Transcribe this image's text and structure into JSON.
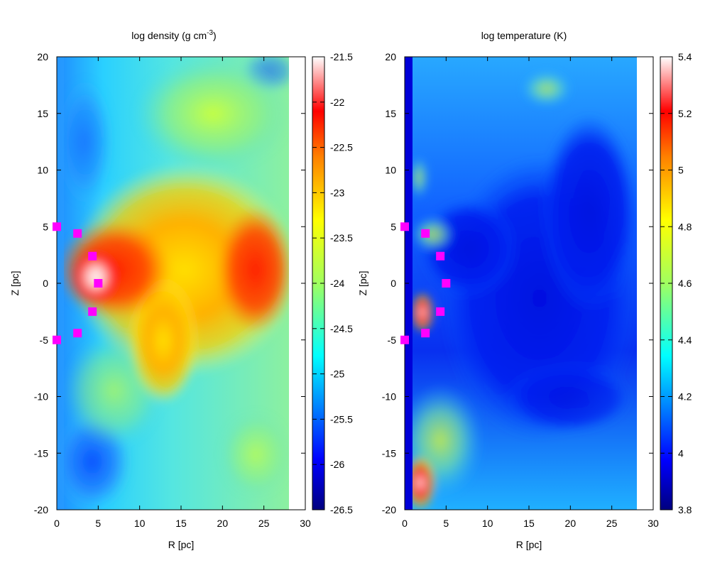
{
  "chart_data": [
    {
      "type": "heatmap",
      "title": "log density (g cm",
      "title_superscript": "-3",
      "title_suffix": ")",
      "xlabel": "R [pc]",
      "ylabel": "Z [pc]",
      "xlim": [
        0,
        30
      ],
      "ylim": [
        -20,
        20
      ],
      "x_ticks": [
        0,
        5,
        10,
        15,
        20,
        25,
        30
      ],
      "y_ticks": [
        -20,
        -15,
        -10,
        -5,
        0,
        5,
        10,
        15,
        20
      ],
      "data_extent_r": [
        0,
        28
      ],
      "colorbar": {
        "range": [
          -26.5,
          -21.5
        ],
        "ticks": [
          "-21.5",
          "-22",
          "-22.5",
          "-23",
          "-23.5",
          "-24",
          "-24.5",
          "-25",
          "-25.5",
          "-26",
          "-26.5"
        ]
      },
      "markers": [
        {
          "x": 0.0,
          "y": 5.0
        },
        {
          "x": 2.5,
          "y": 4.4
        },
        {
          "x": 4.3,
          "y": 2.4
        },
        {
          "x": 5.0,
          "y": 0.0
        },
        {
          "x": 4.3,
          "y": -2.5
        },
        {
          "x": 2.5,
          "y": -4.4
        },
        {
          "x": 0.0,
          "y": -5.0
        }
      ],
      "marker_color": "#ff00ff"
    },
    {
      "type": "heatmap",
      "title": "log temperature (K)",
      "xlabel": "R [pc]",
      "ylabel": "Z [pc]",
      "xlim": [
        0,
        30
      ],
      "ylim": [
        -20,
        20
      ],
      "x_ticks": [
        0,
        5,
        10,
        15,
        20,
        25,
        30
      ],
      "y_ticks": [
        -20,
        -15,
        -10,
        -5,
        0,
        5,
        10,
        15,
        20
      ],
      "data_extent_r": [
        0,
        28
      ],
      "colorbar": {
        "range": [
          3.8,
          5.4
        ],
        "ticks": [
          "5.4",
          "5.2",
          "5",
          "4.8",
          "4.6",
          "4.4",
          "4.2",
          "4",
          "3.8"
        ]
      },
      "markers": [
        {
          "x": 0.0,
          "y": 5.0
        },
        {
          "x": 2.5,
          "y": 4.4
        },
        {
          "x": 4.3,
          "y": 2.4
        },
        {
          "x": 5.0,
          "y": 0.0
        },
        {
          "x": 4.3,
          "y": -2.5
        },
        {
          "x": 2.5,
          "y": -4.4
        },
        {
          "x": 0.0,
          "y": -5.0
        }
      ],
      "marker_color": "#ff00ff"
    }
  ]
}
